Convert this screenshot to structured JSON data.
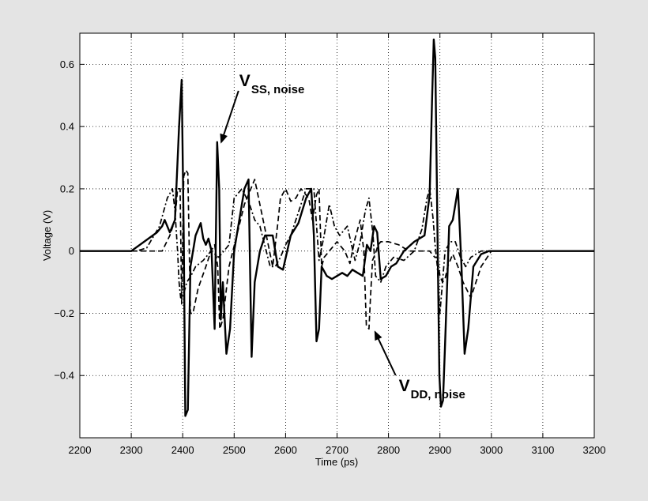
{
  "chart_data": {
    "type": "line",
    "title": "",
    "xlabel": "Time (ps)",
    "ylabel": "Voltage (V)",
    "xlim": [
      2200,
      3200
    ],
    "ylim": [
      -0.6,
      0.7
    ],
    "xticks": [
      2200,
      2300,
      2400,
      2500,
      2600,
      2700,
      2800,
      2900,
      3000,
      3100,
      3200
    ],
    "yticks": [
      -0.4,
      -0.2,
      0,
      0.2,
      0.4,
      0.6
    ],
    "xtick_labels": [
      "2200",
      "2300",
      "2400",
      "2500",
      "2600",
      "2700",
      "2800",
      "2900",
      "3000",
      "3100",
      "3200"
    ],
    "ytick_labels": [
      "−0.4",
      "−0.2",
      "0",
      "0.2",
      "0.4",
      "0.6"
    ],
    "grid": true,
    "legend": "none",
    "series": [
      {
        "style": "solid",
        "color": "#000000",
        "x": [
          2200,
          2300,
          2350,
          2360,
          2365,
          2375,
          2385,
          2393,
          2398,
          2402,
          2405,
          2410,
          2415,
          2425,
          2435,
          2440,
          2445,
          2450,
          2456,
          2462,
          2467,
          2471,
          2474,
          2478,
          2485,
          2492,
          2500,
          2510,
          2520,
          2528,
          2534,
          2540,
          2550,
          2560,
          2575,
          2585,
          2595,
          2610,
          2625,
          2640,
          2650,
          2655,
          2660,
          2665,
          2670,
          2680,
          2690,
          2700,
          2710,
          2720,
          2730,
          2740,
          2750,
          2758,
          2765,
          2772,
          2778,
          2785,
          2795,
          2805,
          2815,
          2830,
          2850,
          2870,
          2880,
          2885,
          2888,
          2891,
          2895,
          2899,
          2902,
          2906,
          2910,
          2918,
          2925,
          2935,
          2942,
          2948,
          2955,
          2965,
          2980,
          2995,
          3000,
          3020,
          3050,
          3100,
          3200
        ],
        "y": [
          0,
          0,
          0.06,
          0.08,
          0.1,
          0.06,
          0.1,
          0.4,
          0.55,
          0.05,
          -0.53,
          -0.51,
          -0.05,
          0.05,
          0.09,
          0.04,
          0.02,
          0.04,
          0.0,
          -0.25,
          0.35,
          0.2,
          -0.22,
          -0.1,
          -0.33,
          -0.25,
          0.0,
          0.1,
          0.2,
          0.23,
          -0.34,
          -0.1,
          0.0,
          0.05,
          0.05,
          -0.05,
          -0.06,
          0.05,
          0.09,
          0.17,
          0.2,
          0.05,
          -0.29,
          -0.25,
          -0.05,
          -0.08,
          -0.09,
          -0.08,
          -0.07,
          -0.08,
          -0.06,
          -0.07,
          -0.08,
          0.02,
          0.0,
          0.08,
          0.06,
          -0.09,
          -0.08,
          -0.05,
          -0.04,
          0.0,
          0.03,
          0.05,
          0.18,
          0.5,
          0.68,
          0.62,
          0.1,
          -0.4,
          -0.5,
          -0.48,
          -0.3,
          0.08,
          0.1,
          0.2,
          -0.05,
          -0.33,
          -0.25,
          -0.05,
          -0.01,
          0.0,
          0.0,
          0.0,
          0.0,
          0.0,
          0.0
        ]
      },
      {
        "style": "dashed",
        "color": "#000000",
        "x": [
          2200,
          2360,
          2375,
          2385,
          2390,
          2395,
          2398,
          2402,
          2406,
          2410,
          2415,
          2420,
          2430,
          2445,
          2455,
          2462,
          2468,
          2472,
          2478,
          2490,
          2505,
          2520,
          2540,
          2560,
          2575,
          2585,
          2590,
          2600,
          2610,
          2620,
          2630,
          2640,
          2645,
          2652,
          2660,
          2665,
          2670,
          2675,
          2685,
          2700,
          2715,
          2725,
          2735,
          2745,
          2752,
          2757,
          2762,
          2765,
          2769,
          2774,
          2780,
          2785,
          2800,
          2820,
          2840,
          2860,
          2880,
          2890,
          2895,
          2900,
          2905,
          2910,
          2915,
          2920,
          2925,
          2935,
          2945,
          2960,
          2980,
          3000,
          3100,
          3200
        ],
        "y": [
          0,
          0,
          0.05,
          0.1,
          0.2,
          0.2,
          -0.17,
          0.24,
          0.26,
          0.25,
          -0.2,
          -0.2,
          -0.12,
          -0.05,
          0.0,
          0.02,
          -0.05,
          -0.25,
          -0.22,
          -0.05,
          0.05,
          0.15,
          0.23,
          0.07,
          -0.05,
          0.09,
          0.17,
          0.2,
          0.16,
          0.17,
          0.2,
          0.18,
          0.17,
          0.1,
          0.18,
          0.2,
          -0.05,
          -0.02,
          0.0,
          0.03,
          0.0,
          -0.04,
          0.04,
          0.1,
          0.0,
          -0.24,
          -0.25,
          -0.15,
          -0.03,
          -0.01,
          0.02,
          0.03,
          0.03,
          0.02,
          0.0,
          0.0,
          0.0,
          -0.02,
          -0.02,
          -0.08,
          -0.1,
          -0.09,
          -0.05,
          -0.03,
          -0.01,
          -0.05,
          -0.1,
          -0.15,
          -0.05,
          0.0,
          0.0,
          0.0
        ]
      },
      {
        "style": "dashdot",
        "color": "#000000",
        "x": [
          2200,
          2310,
          2330,
          2355,
          2370,
          2380,
          2385,
          2390,
          2393,
          2396,
          2400,
          2408,
          2416,
          2425,
          2440,
          2455,
          2470,
          2480,
          2490,
          2500,
          2515,
          2530,
          2540,
          2550,
          2570,
          2580,
          2590,
          2600,
          2610,
          2620,
          2640,
          2655,
          2665,
          2675,
          2685,
          2695,
          2705,
          2720,
          2735,
          2745,
          2755,
          2762,
          2770,
          2775,
          2785,
          2795,
          2810,
          2830,
          2850,
          2865,
          2875,
          2880,
          2883,
          2887,
          2890,
          2895,
          2900,
          2910,
          2920,
          2930,
          2940,
          2950,
          2960,
          2980,
          3000,
          3100,
          3200
        ],
        "y": [
          0,
          0,
          0.01,
          0.08,
          0.17,
          0.2,
          0.13,
          0.0,
          -0.1,
          -0.15,
          -0.15,
          -0.1,
          -0.08,
          -0.05,
          -0.03,
          0.0,
          -0.02,
          0.0,
          0.02,
          0.17,
          0.2,
          0.15,
          0.1,
          0.08,
          -0.05,
          -0.05,
          -0.02,
          0.02,
          0.05,
          0.1,
          0.2,
          0.2,
          -0.03,
          0.05,
          0.15,
          0.08,
          0.05,
          0.08,
          -0.03,
          0.03,
          0.13,
          0.17,
          0.05,
          -0.08,
          -0.1,
          -0.05,
          -0.02,
          -0.03,
          0.0,
          0.07,
          0.17,
          0.2,
          0.16,
          0.1,
          0.03,
          -0.05,
          -0.2,
          0.0,
          0.03,
          0.03,
          -0.02,
          -0.05,
          -0.02,
          0.0,
          0.0,
          0.0,
          0.0
        ]
      }
    ],
    "annotations": [
      {
        "text_main": "V",
        "text_sub": "SS, noise",
        "x": 2510,
        "y": 0.53,
        "arrow_to": [
          2475,
          0.35
        ]
      },
      {
        "text_main": "V",
        "text_sub": "DD, noise",
        "x": 2820,
        "y": -0.45,
        "arrow_to": [
          2774,
          -0.26
        ]
      }
    ]
  }
}
